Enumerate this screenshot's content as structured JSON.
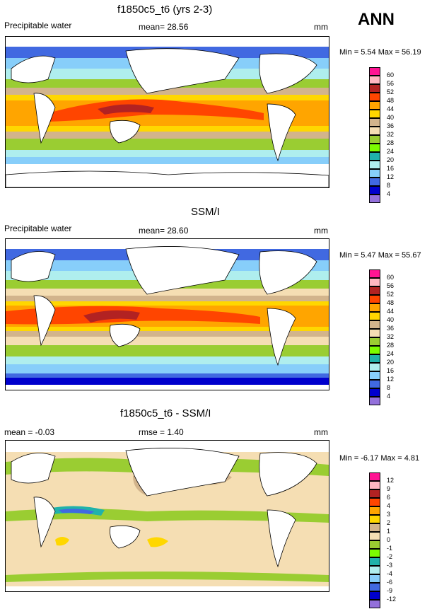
{
  "season": "ANN",
  "panels": [
    {
      "id": "model",
      "title": "f1850c5_t6 (yrs 2-3)",
      "left_label": "Precipitable water",
      "center_label": "mean=  28.56",
      "units": "mm",
      "minmax": "Min =   5.54 Max =  56.19",
      "colorbar_labels": [
        "60",
        "56",
        "52",
        "48",
        "44",
        "40",
        "36",
        "32",
        "28",
        "24",
        "20",
        "16",
        "12",
        "8",
        "4"
      ],
      "colorbar_colors": [
        "#ff1493",
        "#ffb6c1",
        "#b22222",
        "#ff4500",
        "#ffa500",
        "#ffd700",
        "#d2b48c",
        "#f5deb3",
        "#9acd32",
        "#7cfc00",
        "#20b2aa",
        "#afeeee",
        "#87cefa",
        "#4169e1",
        "#0000cd",
        "#9370db"
      ]
    },
    {
      "id": "obs",
      "title": "SSM/I",
      "left_label": "Precipitable water",
      "center_label": "mean=  28.60",
      "units": "mm",
      "minmax": "Min =   5.47 Max =  55.67",
      "colorbar_labels": [
        "60",
        "56",
        "52",
        "48",
        "44",
        "40",
        "36",
        "32",
        "28",
        "24",
        "20",
        "16",
        "12",
        "8",
        "4"
      ],
      "colorbar_colors": [
        "#ff1493",
        "#ffb6c1",
        "#b22222",
        "#ff4500",
        "#ffa500",
        "#ffd700",
        "#d2b48c",
        "#f5deb3",
        "#9acd32",
        "#7cfc00",
        "#20b2aa",
        "#afeeee",
        "#87cefa",
        "#4169e1",
        "#0000cd",
        "#9370db"
      ]
    },
    {
      "id": "diff",
      "title": "f1850c5_t6 - SSM/I",
      "left_label": "mean =  -0.03",
      "center_label": "rmse =   1.40",
      "units": "mm",
      "minmax": "Min =  -6.17 Max =   4.81",
      "colorbar_labels": [
        "12",
        "9",
        "6",
        "4",
        "3",
        "2",
        "1",
        "0",
        "-1",
        "-2",
        "-3",
        "-4",
        "-6",
        "-9",
        "-12"
      ],
      "colorbar_colors": [
        "#ff1493",
        "#ffb6c1",
        "#b22222",
        "#ff4500",
        "#ffa500",
        "#ffd700",
        "#d2b48c",
        "#f5deb3",
        "#9acd32",
        "#7cfc00",
        "#20b2aa",
        "#afeeee",
        "#87cefa",
        "#4169e1",
        "#0000cd",
        "#9370db"
      ]
    }
  ]
}
